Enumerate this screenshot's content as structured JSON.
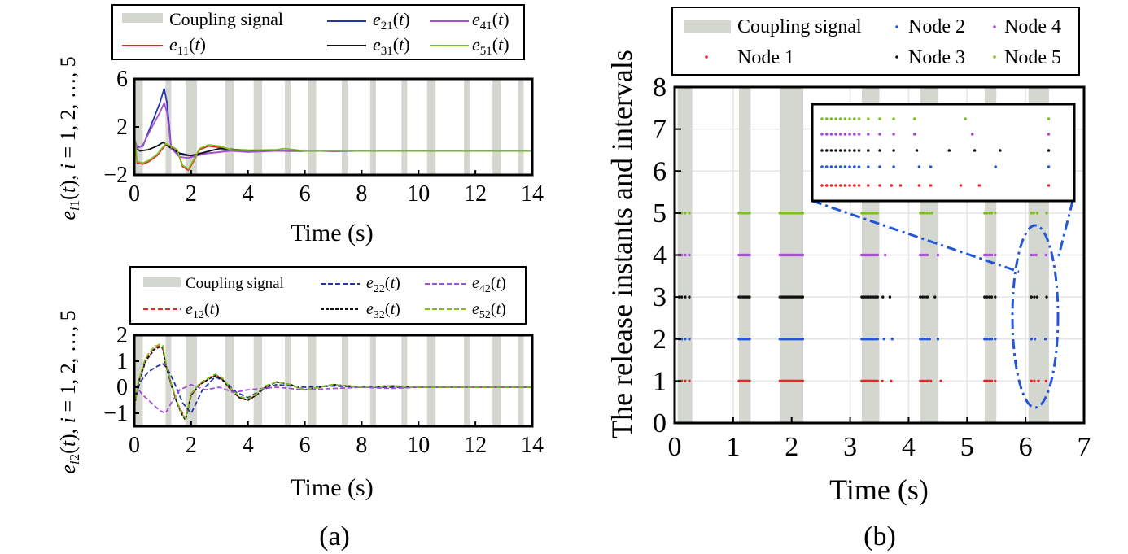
{
  "chart_data": [
    {
      "type": "line",
      "panel": "(a) top",
      "xlabel": "Time (s)",
      "ylabel": "e_i1(t), i = 1, 2, ..., 5",
      "xlim": [
        0,
        14
      ],
      "ylim": [
        -2,
        6
      ],
      "xticks": [
        "0",
        "2",
        "4",
        "6",
        "8",
        "10",
        "12",
        "14"
      ],
      "yticks": [
        "−2",
        "2",
        "6"
      ],
      "coupling_intervals": [
        [
          0,
          0.3
        ],
        [
          1.1,
          1.3
        ],
        [
          1.8,
          2.2
        ],
        [
          3.2,
          3.5
        ],
        [
          4.2,
          4.5
        ],
        [
          5.3,
          5.5
        ],
        [
          6.1,
          6.4
        ],
        [
          7.3,
          7.5
        ],
        [
          8.3,
          8.5
        ],
        [
          9.4,
          9.6
        ],
        [
          10.3,
          10.6
        ],
        [
          11.6,
          11.8
        ],
        [
          12.6,
          12.9
        ],
        [
          13.5,
          13.7
        ]
      ],
      "legend": [
        "Coupling signal",
        "e11(t)",
        "e21(t)",
        "e31(t)",
        "e41(t)",
        "e51(t)"
      ],
      "legend_placement": "top",
      "series": [
        {
          "name": "e11(t)",
          "color": "#e8252a",
          "dash": "",
          "x": [
            0,
            0.1,
            0.3,
            0.5,
            0.8,
            1.0,
            1.1,
            1.3,
            1.5,
            1.7,
            1.9,
            2.1,
            2.3,
            2.6,
            3.0,
            3.4,
            4.0,
            5.0,
            6.0,
            8.0,
            14.0
          ],
          "y": [
            1.2,
            -1.0,
            -1.1,
            -0.9,
            -0.4,
            0.2,
            0.5,
            0.3,
            0.1,
            -1.3,
            -1.6,
            -0.8,
            0.1,
            0.4,
            0.3,
            0.1,
            0.05,
            0.05,
            0,
            0,
            0
          ]
        },
        {
          "name": "e21(t)",
          "color": "#2436a6",
          "dash": "",
          "x": [
            0,
            0.1,
            0.3,
            0.6,
            0.9,
            1.05,
            1.15,
            1.3,
            1.6,
            1.9,
            2.2,
            2.6,
            3.0,
            3.4,
            4.0,
            5.0,
            6.0,
            8.0,
            14.0
          ],
          "y": [
            1.0,
            0.3,
            0.4,
            2.2,
            4.0,
            5.2,
            4.0,
            0.2,
            -0.3,
            -0.4,
            -0.3,
            -0.2,
            -0.1,
            0.05,
            0,
            0.05,
            0,
            0,
            0
          ]
        },
        {
          "name": "e31(t)",
          "color": "#111111",
          "dash": "",
          "x": [
            0,
            0.2,
            0.5,
            0.8,
            1.0,
            1.1,
            1.3,
            1.6,
            2.0,
            2.5,
            3.0,
            4.0,
            5.0,
            6.0,
            8.0,
            14.0
          ],
          "y": [
            0.3,
            0.0,
            0.1,
            0.4,
            0.7,
            0.6,
            0.2,
            -0.2,
            -0.4,
            -0.1,
            0.2,
            0.05,
            0,
            0,
            0,
            0
          ]
        },
        {
          "name": "e41(t)",
          "color": "#a64fd2",
          "dash": "",
          "x": [
            0,
            0.1,
            0.3,
            0.6,
            0.9,
            1.05,
            1.15,
            1.3,
            1.6,
            1.9,
            2.2,
            2.6,
            3.0,
            3.4,
            4.0,
            5.0,
            6.0,
            7.0,
            8.0,
            9.0,
            14.0
          ],
          "y": [
            1.1,
            0.2,
            0.5,
            1.9,
            3.2,
            4.0,
            3.2,
            0.2,
            -0.5,
            -0.6,
            -0.4,
            -0.2,
            -0.1,
            0,
            -0.1,
            0,
            0.05,
            -0.05,
            0,
            0,
            0
          ]
        },
        {
          "name": "e51(t)",
          "color": "#7dbf1e",
          "dash": "",
          "x": [
            0,
            0.1,
            0.3,
            0.5,
            0.8,
            1.0,
            1.1,
            1.3,
            1.5,
            1.7,
            1.9,
            2.1,
            2.3,
            2.6,
            3.0,
            3.4,
            4.0,
            5.0,
            5.3,
            6.0,
            8.0,
            14.0
          ],
          "y": [
            1.4,
            -0.9,
            -1.0,
            -0.8,
            -0.3,
            0.3,
            0.6,
            0.4,
            0.1,
            -1.2,
            -1.5,
            -0.7,
            0.2,
            0.5,
            0.4,
            0.1,
            0.05,
            0.1,
            0.2,
            0,
            0,
            0
          ]
        }
      ]
    },
    {
      "type": "line",
      "panel": "(a) bottom",
      "xlabel": "Time (s)",
      "ylabel": "e_i2(t), i = 1, 2, ..., 5",
      "xlim": [
        0,
        14
      ],
      "ylim": [
        -1.5,
        2
      ],
      "xticks": [
        "0",
        "2",
        "4",
        "6",
        "8",
        "10",
        "12",
        "14"
      ],
      "yticks": [
        "−1",
        "0",
        "1",
        "2"
      ],
      "coupling_intervals": [
        [
          0,
          0.3
        ],
        [
          1.1,
          1.3
        ],
        [
          1.8,
          2.2
        ],
        [
          3.2,
          3.5
        ],
        [
          4.2,
          4.5
        ],
        [
          5.3,
          5.5
        ],
        [
          6.1,
          6.4
        ],
        [
          7.3,
          7.5
        ],
        [
          8.3,
          8.5
        ],
        [
          9.4,
          9.6
        ],
        [
          10.3,
          10.6
        ],
        [
          11.6,
          11.8
        ],
        [
          12.6,
          12.9
        ],
        [
          13.5,
          13.7
        ]
      ],
      "legend": [
        "Coupling signal",
        "e12(t)",
        "e22(t)",
        "e32(t)",
        "e42(t)",
        "e52(t)"
      ],
      "legend_placement": "top",
      "series": [
        {
          "name": "e12(t)",
          "color": "#e8252a",
          "dash": "6,3",
          "x": [
            0,
            0.15,
            0.4,
            0.7,
            0.9,
            1.0,
            1.1,
            1.3,
            1.5,
            1.7,
            1.8,
            2.0,
            2.3,
            2.6,
            2.85,
            3.1,
            3.4,
            3.7,
            4.0,
            4.3,
            4.6,
            5.0,
            5.5,
            6.0,
            6.5,
            7.0,
            8.0,
            9.0,
            10.0,
            12.0,
            14.0
          ],
          "y": [
            -0.8,
            0.2,
            1.1,
            1.5,
            1.6,
            1.55,
            0.9,
            0.1,
            -0.6,
            -1.0,
            -1.2,
            -0.3,
            0.1,
            0.3,
            0.5,
            0.3,
            -0.1,
            -0.4,
            -0.5,
            -0.3,
            0,
            0.2,
            0.1,
            -0.1,
            0,
            0.1,
            0,
            0.05,
            0,
            0,
            0
          ]
        },
        {
          "name": "e22(t)",
          "color": "#2436a6",
          "dash": "6,3",
          "x": [
            0,
            0.2,
            0.5,
            0.8,
            1.0,
            1.15,
            1.4,
            1.7,
            2.0,
            2.4,
            2.85,
            3.2,
            3.6,
            4.0,
            4.5,
            5.0,
            6.0,
            7.0,
            8.0,
            14.0
          ],
          "y": [
            -0.6,
            0.2,
            0.6,
            0.8,
            0.9,
            0.75,
            0.2,
            -0.6,
            -1.0,
            -0.1,
            0.4,
            0.2,
            -0.2,
            -0.4,
            -0.1,
            0.1,
            0,
            0.05,
            0,
            0
          ]
        },
        {
          "name": "e32(t)",
          "color": "#111111",
          "dash": "4,2",
          "x": [
            0,
            0.15,
            0.4,
            0.7,
            0.9,
            1.0,
            1.1,
            1.3,
            1.5,
            1.7,
            1.8,
            2.0,
            2.3,
            2.6,
            2.85,
            3.1,
            3.4,
            3.7,
            4.0,
            4.3,
            4.6,
            5.0,
            5.5,
            6.0,
            6.5,
            7.0,
            8.0,
            9.0,
            10.0,
            12.0,
            14.0
          ],
          "y": [
            -0.7,
            0.2,
            1.0,
            1.45,
            1.55,
            1.5,
            0.9,
            0.1,
            -0.6,
            -1.1,
            -1.25,
            -0.3,
            0.1,
            0.3,
            0.45,
            0.3,
            -0.1,
            -0.4,
            -0.5,
            -0.3,
            0,
            0.2,
            0.1,
            -0.1,
            0,
            0.1,
            0,
            0.05,
            0,
            0,
            0
          ]
        },
        {
          "name": "e42(t)",
          "color": "#a64fd2",
          "dash": "6,3",
          "x": [
            0,
            0.3,
            0.6,
            0.9,
            1.1,
            1.3,
            1.6,
            2.0,
            2.5,
            3.0,
            3.5,
            4.0,
            5.0,
            6.0,
            7.0,
            8.0,
            9.0,
            10.0,
            14.0
          ],
          "y": [
            0.1,
            -0.3,
            -0.6,
            -0.9,
            -1.0,
            -0.6,
            -0.1,
            0.1,
            -0.1,
            0,
            -0.2,
            -0.1,
            0,
            -0.1,
            -0.05,
            0,
            -0.05,
            0,
            0
          ]
        },
        {
          "name": "e52(t)",
          "color": "#7dbf1e",
          "dash": "6,3",
          "x": [
            0,
            0.15,
            0.4,
            0.7,
            0.9,
            1.0,
            1.1,
            1.3,
            1.5,
            1.7,
            1.8,
            2.0,
            2.3,
            2.6,
            2.85,
            3.1,
            3.4,
            3.7,
            4.0,
            4.3,
            4.6,
            5.0,
            5.5,
            6.0,
            6.5,
            7.0,
            8.0,
            9.0,
            10.0,
            12.0,
            14.0
          ],
          "y": [
            -0.75,
            0.25,
            1.15,
            1.55,
            1.65,
            1.6,
            1.0,
            0.15,
            -0.55,
            -1.05,
            -1.2,
            -0.25,
            0.15,
            0.35,
            0.5,
            0.35,
            -0.05,
            -0.35,
            -0.45,
            -0.25,
            0.05,
            0.2,
            0.1,
            -0.1,
            0,
            0.1,
            0,
            0.05,
            0,
            0,
            0
          ]
        }
      ]
    },
    {
      "type": "scatter",
      "panel": "(b)",
      "xlabel": "Time (s)",
      "ylabel": "The release instants and intervals",
      "xlim": [
        0,
        7
      ],
      "ylim": [
        0,
        8
      ],
      "xticks": [
        "0",
        "1",
        "2",
        "3",
        "4",
        "5",
        "6",
        "7"
      ],
      "yticks": [
        "0",
        "1",
        "2",
        "3",
        "4",
        "5",
        "6",
        "7",
        "8"
      ],
      "coupling_intervals": [
        [
          0.05,
          0.3
        ],
        [
          1.1,
          1.3
        ],
        [
          1.8,
          2.2
        ],
        [
          3.2,
          3.5
        ],
        [
          4.2,
          4.5
        ],
        [
          5.3,
          5.5
        ],
        [
          6.05,
          6.4
        ]
      ],
      "legend": [
        "Coupling signal",
        "Node 1",
        "Node 2",
        "Node 3",
        "Node 4",
        "Node 5"
      ],
      "legend_placement": "top",
      "series": [
        {
          "name": "Node 1",
          "color": "#e8252a",
          "y": 1
        },
        {
          "name": "Node 2",
          "color": "#2456d6",
          "y": 2
        },
        {
          "name": "Node 3",
          "color": "#111111",
          "y": 3
        },
        {
          "name": "Node 4",
          "color": "#a64fd2",
          "y": 4
        },
        {
          "name": "Node 5",
          "color": "#7dbf1e",
          "y": 5
        }
      ],
      "release_instants": {
        "Node 1": [
          0.08,
          0.12,
          0.18,
          0.25,
          1.1,
          1.13,
          1.16,
          1.19,
          1.22,
          1.25,
          1.28,
          1.8,
          1.83,
          1.86,
          1.89,
          1.92,
          1.95,
          1.98,
          2.01,
          2.04,
          2.07,
          2.1,
          2.13,
          2.16,
          2.19,
          3.2,
          3.23,
          3.26,
          3.29,
          3.32,
          3.35,
          3.38,
          3.41,
          3.44,
          3.47,
          3.55,
          3.7,
          4.2,
          4.24,
          4.28,
          4.32,
          4.38,
          4.55,
          5.3,
          5.34,
          5.38,
          5.42,
          5.48,
          6.1,
          6.15,
          6.22,
          6.35
        ],
        "Node 2": [
          0.08,
          0.12,
          0.18,
          0.25,
          1.1,
          1.13,
          1.16,
          1.19,
          1.22,
          1.25,
          1.28,
          1.8,
          1.83,
          1.86,
          1.89,
          1.92,
          1.95,
          1.98,
          2.01,
          2.04,
          2.07,
          2.1,
          2.13,
          2.16,
          2.19,
          3.2,
          3.23,
          3.26,
          3.29,
          3.32,
          3.35,
          3.38,
          3.41,
          3.44,
          3.47,
          3.58,
          3.72,
          4.2,
          4.24,
          4.28,
          4.32,
          4.36,
          4.5,
          5.3,
          5.34,
          5.38,
          5.42,
          5.48,
          6.1,
          6.16,
          6.34
        ],
        "Node 3": [
          0.08,
          0.12,
          0.18,
          0.25,
          1.1,
          1.13,
          1.16,
          1.19,
          1.22,
          1.25,
          1.28,
          1.8,
          1.83,
          1.86,
          1.89,
          1.92,
          1.95,
          1.98,
          2.01,
          2.04,
          2.07,
          2.1,
          2.13,
          2.16,
          2.19,
          3.2,
          3.23,
          3.26,
          3.29,
          3.32,
          3.35,
          3.38,
          3.41,
          3.44,
          3.47,
          3.56,
          3.68,
          4.2,
          4.24,
          4.28,
          4.32,
          4.45,
          5.3,
          5.34,
          5.38,
          5.42,
          5.48,
          6.1,
          6.15,
          6.2,
          6.36
        ],
        "Node 4": [
          0.08,
          0.12,
          0.18,
          0.25,
          1.1,
          1.13,
          1.16,
          1.19,
          1.22,
          1.25,
          1.28,
          1.8,
          1.83,
          1.86,
          1.89,
          1.92,
          1.95,
          1.98,
          2.01,
          2.04,
          2.07,
          2.1,
          2.13,
          2.16,
          2.19,
          3.2,
          3.23,
          3.26,
          3.29,
          3.32,
          3.35,
          3.38,
          3.41,
          3.44,
          3.47,
          3.6,
          4.2,
          4.24,
          4.28,
          4.32,
          4.5,
          5.3,
          5.34,
          5.38,
          5.42,
          5.48,
          6.1,
          6.14,
          6.18,
          6.35
        ],
        "Node 5": [
          0.08,
          0.12,
          0.18,
          0.25,
          1.1,
          1.13,
          1.16,
          1.19,
          1.22,
          1.25,
          1.28,
          1.8,
          1.83,
          1.86,
          1.89,
          1.92,
          1.95,
          1.98,
          2.01,
          2.04,
          2.07,
          2.1,
          2.13,
          2.16,
          2.19,
          3.2,
          3.23,
          3.26,
          3.29,
          3.32,
          3.35,
          3.38,
          3.41,
          3.44,
          3.47,
          4.2,
          4.24,
          4.28,
          4.32,
          4.36,
          4.4,
          5.3,
          5.34,
          5.38,
          5.42,
          5.48,
          6.1,
          6.14,
          6.2,
          6.36
        ]
      },
      "inset": {
        "rows": [
          "Node 5",
          "Node 4",
          "Node 3",
          "Node 2",
          "Node 1"
        ],
        "note": "zoomed view of release instants near t = 6 s"
      }
    }
  ],
  "captions": {
    "a": "(a)",
    "b": "(b)"
  }
}
